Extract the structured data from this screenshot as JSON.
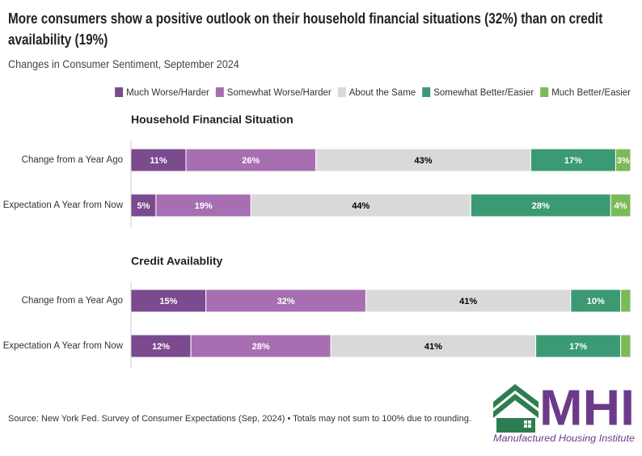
{
  "title": "More consumers show a positive outlook on their household financial situations (32%) than on credit availability (19%)",
  "subtitle": "Changes in Consumer Sentiment, September 2024",
  "source": "Source: New York Fed. Survey of Consumer Expectations (Sep, 2024) • Totals may not sum to 100% due to rounding.",
  "logo": {
    "text": "MHI",
    "tagline": "Manufactured Housing Institute"
  },
  "chart_data": [
    {
      "type": "stacked-bar",
      "title": "Household Financial Situation",
      "categories": [
        "Change from a Year Ago",
        "Expectation A Year from Now"
      ],
      "xlim": [
        0,
        100
      ],
      "series": [
        {
          "name": "Much Worse/Harder",
          "color": "#7b4a8f",
          "label_color": "#ffffff",
          "values": [
            11,
            5
          ],
          "value_labels": [
            "11%",
            "5%"
          ]
        },
        {
          "name": "Somewhat Worse/Harder",
          "color": "#a76fb2",
          "label_color": "#ffffff",
          "values": [
            26,
            19
          ],
          "value_labels": [
            "26%",
            "19%"
          ]
        },
        {
          "name": "About the Same",
          "color": "#d9d9d9",
          "label_color": "#000000",
          "values": [
            43,
            44
          ],
          "value_labels": [
            "43%",
            "44%"
          ]
        },
        {
          "name": "Somewhat Better/Easier",
          "color": "#3b9a74",
          "label_color": "#ffffff",
          "values": [
            17,
            28
          ],
          "value_labels": [
            "17%",
            "28%"
          ]
        },
        {
          "name": "Much Better/Easier",
          "color": "#7cb957",
          "label_color": "#ffffff",
          "values": [
            3,
            4
          ],
          "value_labels": [
            "3%",
            "4%"
          ]
        }
      ]
    },
    {
      "type": "stacked-bar",
      "title": "Credit Availablity",
      "categories": [
        "Change from a Year Ago",
        "Expectation A Year from Now"
      ],
      "xlim": [
        0,
        100
      ],
      "series": [
        {
          "name": "Much Worse/Harder",
          "color": "#7b4a8f",
          "label_color": "#ffffff",
          "values": [
            15,
            12
          ],
          "value_labels": [
            "15%",
            "12%"
          ]
        },
        {
          "name": "Somewhat Worse/Harder",
          "color": "#a76fb2",
          "label_color": "#ffffff",
          "values": [
            32,
            28
          ],
          "value_labels": [
            "32%",
            "28%"
          ]
        },
        {
          "name": "About the Same",
          "color": "#d9d9d9",
          "label_color": "#000000",
          "values": [
            41,
            41
          ],
          "value_labels": [
            "41%",
            "41%"
          ]
        },
        {
          "name": "Somewhat Better/Easier",
          "color": "#3b9a74",
          "label_color": "#ffffff",
          "values": [
            10,
            17
          ],
          "value_labels": [
            "10%",
            "17%"
          ]
        },
        {
          "name": "Much Better/Easier",
          "color": "#7cb957",
          "label_color": "#ffffff",
          "values": [
            2,
            2
          ],
          "value_labels": [
            null,
            null
          ]
        }
      ]
    }
  ]
}
